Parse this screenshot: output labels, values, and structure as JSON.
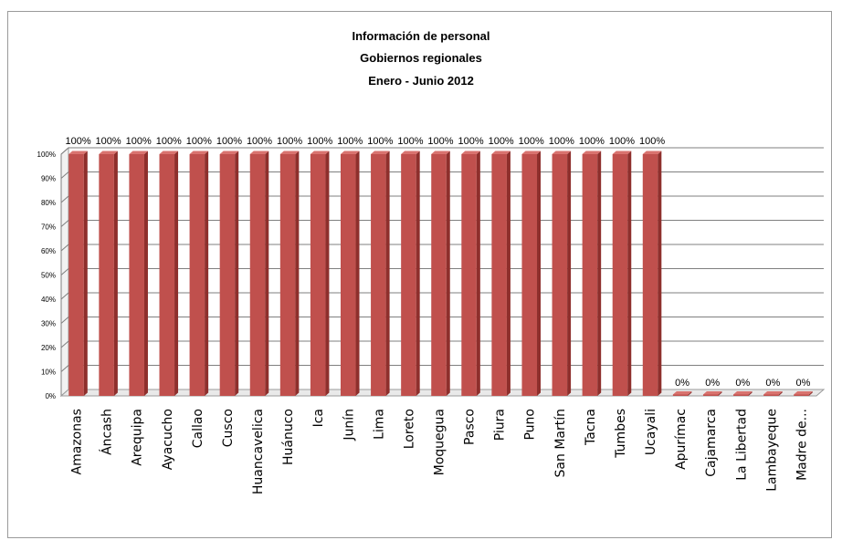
{
  "chart_data": {
    "type": "bar",
    "title_lines": [
      "Información de personal",
      "Gobiernos regionales",
      "Enero - Junio 2012"
    ],
    "categories": [
      "Amazonas",
      "Áncash",
      "Arequipa",
      "Ayacucho",
      "Callao",
      "Cusco",
      "Huancavelica",
      "Huánuco",
      "Ica",
      "Junín",
      "Lima",
      "Loreto",
      "Moquegua",
      "Pasco",
      "Piura",
      "Puno",
      "San Martín",
      "Tacna",
      "Tumbes",
      "Ucayali",
      "Apurímac",
      "Cajamarca",
      "La Libertad",
      "Lambayeque",
      "Madre de..."
    ],
    "values": [
      100,
      100,
      100,
      100,
      100,
      100,
      100,
      100,
      100,
      100,
      100,
      100,
      100,
      100,
      100,
      100,
      100,
      100,
      100,
      100,
      0,
      0,
      0,
      0,
      0
    ],
    "data_labels": [
      "100%",
      "100%",
      "100%",
      "100%",
      "100%",
      "100%",
      "100%",
      "100%",
      "100%",
      "100%",
      "100%",
      "100%",
      "100%",
      "100%",
      "100%",
      "100%",
      "100%",
      "100%",
      "100%",
      "100%",
      "0%",
      "0%",
      "0%",
      "0%",
      "0%"
    ],
    "yticks": [
      "0%",
      "10%",
      "20%",
      "30%",
      "40%",
      "50%",
      "60%",
      "70%",
      "80%",
      "90%",
      "100%"
    ],
    "ylim": [
      0,
      100
    ],
    "grid": true,
    "legend": "none",
    "bar_color": "#c0504d",
    "bar_dark_color": "#8e2f2c",
    "bar_light_color": "#d9736f"
  }
}
